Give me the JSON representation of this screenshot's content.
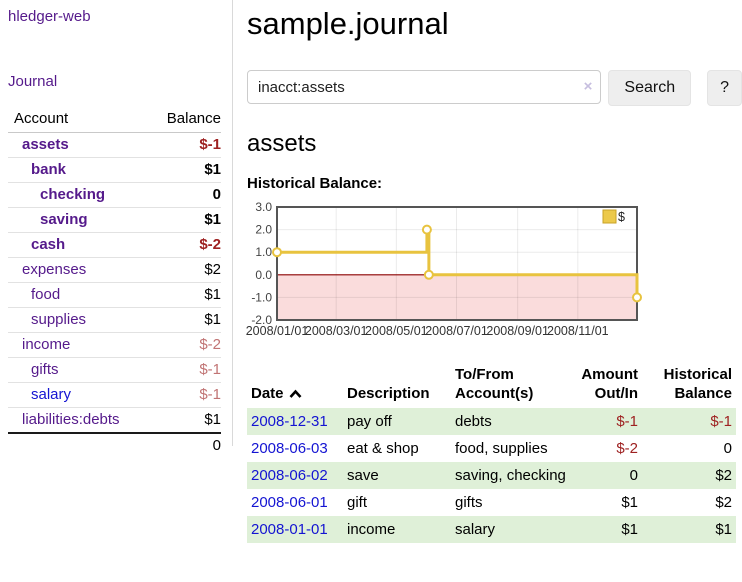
{
  "colors": {
    "link-purple": "#551a8b",
    "link-blue": "#1414d2",
    "neg-strong": "#9e2121",
    "neg-soft": "#c17474",
    "row-stripe-green": "#dff0d8",
    "chart-gold": "#e8c33f",
    "chart-pink": "#fadcdc",
    "chart-zero-red": "#8b0000",
    "chart-border": "#555555",
    "button-gray": "#eeeeee"
  },
  "sidebar": {
    "brand": "hledger-web",
    "journal_link": "Journal",
    "accounts_table": {
      "headers": {
        "account": "Account",
        "balance": "Balance"
      },
      "rows": [
        {
          "name": "assets",
          "depth": 1,
          "bold": true,
          "balance": "$-1",
          "balance_class": "neg-strong"
        },
        {
          "name": "bank",
          "depth": 2,
          "bold": true,
          "balance": "$1",
          "balance_class": "pos"
        },
        {
          "name": "checking",
          "depth": 3,
          "bold": true,
          "balance": "0",
          "balance_class": "pos"
        },
        {
          "name": "saving",
          "depth": 3,
          "bold": true,
          "balance": "$1",
          "balance_class": "pos"
        },
        {
          "name": "cash",
          "depth": 2,
          "bold": true,
          "balance": "$-2",
          "balance_class": "neg-strong"
        },
        {
          "name": "expenses",
          "depth": 1,
          "bold": false,
          "balance": "$2",
          "balance_class": "pos"
        },
        {
          "name": "food",
          "depth": 2,
          "bold": false,
          "balance": "$1",
          "balance_class": "pos"
        },
        {
          "name": "supplies",
          "depth": 2,
          "bold": false,
          "balance": "$1",
          "balance_class": "pos"
        },
        {
          "name": "income",
          "depth": 1,
          "bold": false,
          "balance": "$-2",
          "balance_class": "neg-soft"
        },
        {
          "name": "gifts",
          "depth": 2,
          "bold": false,
          "balance": "$-1",
          "balance_class": "neg-soft"
        },
        {
          "name": "salary",
          "depth": 2,
          "bold": false,
          "link": "blue",
          "balance": "$-1",
          "balance_class": "neg-soft"
        },
        {
          "name": "liabilities:debts",
          "depth": 1,
          "bold": false,
          "balance": "$1",
          "balance_class": "pos"
        }
      ],
      "total": "0"
    }
  },
  "main": {
    "title": "sample.journal",
    "search": {
      "value": "inacct:assets",
      "clear_label": "×",
      "search_button": "Search",
      "help_button": "?"
    },
    "account_heading": "assets",
    "chart_heading": "Historical Balance:"
  },
  "chart_data": {
    "type": "line",
    "interpolation": "step-after",
    "series": [
      {
        "name": "$",
        "points": [
          {
            "date": "2008-01-01",
            "value": 1
          },
          {
            "date": "2008-06-01",
            "value": 2
          },
          {
            "date": "2008-06-03",
            "value": 0
          },
          {
            "date": "2008-12-31",
            "value": -1
          }
        ]
      }
    ],
    "ylim": [
      -2,
      3
    ],
    "yticks": [
      "3.0",
      "2.0",
      "1.0",
      "0.0",
      "-1.0",
      "-2.0"
    ],
    "xticks": [
      "2008/01/01",
      "2008/03/01",
      "2008/05/01",
      "2008/07/01",
      "2008/09/01",
      "2008/11/01"
    ],
    "x_range": [
      "2008-01-01",
      "2008-12-31"
    ],
    "legend": {
      "label": "$",
      "position": "top-right"
    },
    "negative_region_shaded": true,
    "grid": true
  },
  "register_table": {
    "headers": [
      {
        "lines": [
          "Date"
        ],
        "align": "left",
        "sort": "asc"
      },
      {
        "lines": [
          "Description"
        ],
        "align": "left"
      },
      {
        "lines": [
          "To/From",
          "Account(s)"
        ],
        "align": "left"
      },
      {
        "lines": [
          "Amount",
          "Out/In"
        ],
        "align": "right"
      },
      {
        "lines": [
          "Historical",
          "Balance"
        ],
        "align": "right"
      }
    ],
    "rows": [
      {
        "date": "2008-12-31",
        "description": "pay off",
        "accounts": "debts",
        "amount": "$-1",
        "amount_negative": true,
        "balance": "$-1",
        "balance_negative": true
      },
      {
        "date": "2008-06-03",
        "description": "eat & shop",
        "accounts": "food, supplies",
        "amount": "$-2",
        "amount_negative": true,
        "balance": "0",
        "balance_negative": false
      },
      {
        "date": "2008-06-02",
        "description": "save",
        "accounts": "saving, checking",
        "amount": "0",
        "amount_negative": false,
        "balance": "$2",
        "balance_negative": false
      },
      {
        "date": "2008-06-01",
        "description": "gift",
        "accounts": "gifts",
        "amount": "$1",
        "amount_negative": false,
        "balance": "$2",
        "balance_negative": false
      },
      {
        "date": "2008-01-01",
        "description": "income",
        "accounts": "salary",
        "amount": "$1",
        "amount_negative": false,
        "balance": "$1",
        "balance_negative": false
      }
    ]
  }
}
